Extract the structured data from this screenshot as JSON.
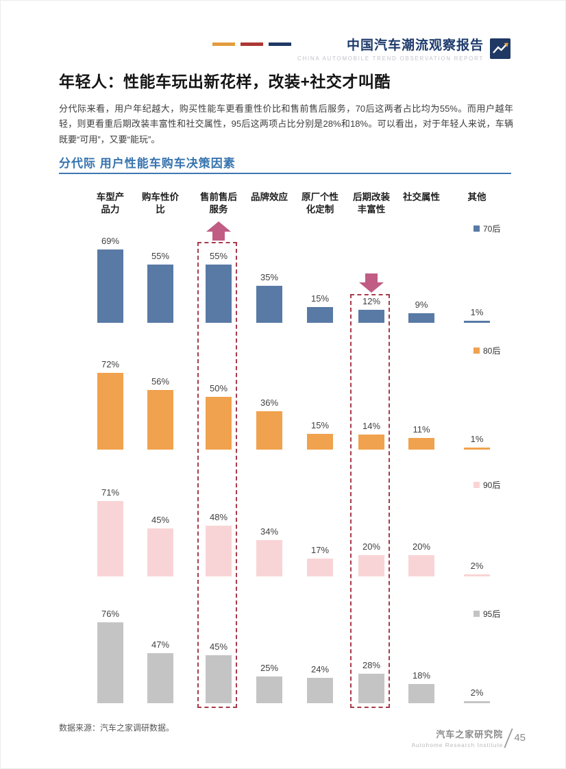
{
  "header": {
    "title": "中国汽车潮流观察报告",
    "subtitle": "CHINA AUTOMOBILE TREND OBSERVATION REPORT"
  },
  "page": {
    "title": "年轻人：性能车玩出新花样，改装+社交才叫酷",
    "paragraph": "分代际来看，用户年纪越大，购买性能车更看重性价比和售前售后服务，70后这两者占比均为55%。而用户越年轻，则更看重后期改装丰富性和社交属性，95后这两项占比分别是28%和18%。可以看出，对于年轻人来说，车辆既要“可用”，又要“能玩”。",
    "source": "数据来源：汽车之家调研数据。",
    "footer_cn": "汽车之家研究院",
    "footer_en": "Autohome Research Institute",
    "page_number": "45"
  },
  "colors": {
    "header_navy": "#1f3864",
    "header_dash_orange": "#e29c3e",
    "header_dash_red": "#ad3732",
    "section_blue": "#3673ae"
  },
  "chart_data": {
    "type": "bar",
    "title": "分代际 用户性能车购车决策因素",
    "categories": [
      "车型产品力",
      "购车性价比",
      "售前售后服务",
      "品牌效应",
      "原厂个性化定制",
      "后期改装丰富性",
      "社交属性",
      "其他"
    ],
    "category_display": [
      "车型产\n品力",
      "购车性价\n比",
      "售前售后\n服务",
      "品牌效应",
      "原厂个性\n化定制",
      "后期改装\n丰富性",
      "社交属性",
      "其他"
    ],
    "series": [
      {
        "name": "70后",
        "color": "#587aa5",
        "values": [
          69,
          55,
          55,
          35,
          15,
          12,
          9,
          1
        ]
      },
      {
        "name": "80后",
        "color": "#f0a24e",
        "values": [
          72,
          56,
          50,
          36,
          15,
          14,
          11,
          1
        ]
      },
      {
        "name": "90后",
        "color": "#f9d4d6",
        "values": [
          71,
          45,
          48,
          34,
          17,
          20,
          20,
          2
        ]
      },
      {
        "name": "95后",
        "color": "#c4c4c4",
        "values": [
          76,
          47,
          45,
          25,
          24,
          28,
          18,
          2
        ]
      }
    ],
    "value_suffix": "%",
    "ylim": [
      0,
      80
    ],
    "grid": false,
    "legend_position": "right-per-row",
    "highlight_color": "#c15c84",
    "highlight_border": "#a83a4a",
    "highlight_columns": [
      {
        "category": "售前售后服务",
        "category_index": 2,
        "arrow": "up"
      },
      {
        "category": "后期改装丰富性",
        "category_index": 5,
        "arrow": "down"
      }
    ]
  }
}
